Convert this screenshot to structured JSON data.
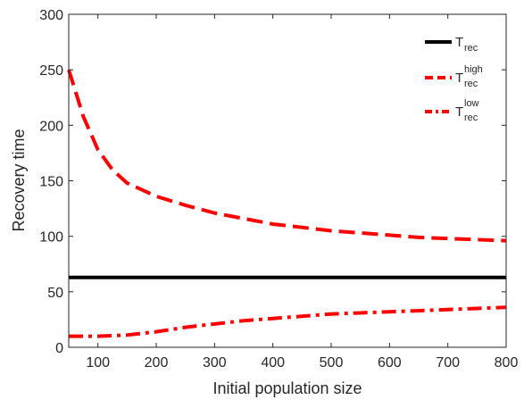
{
  "chart_data": {
    "type": "line",
    "title": "",
    "xlabel": "Initial population size",
    "ylabel": "Recovery time",
    "xlim": [
      50,
      800
    ],
    "ylim": [
      0,
      300
    ],
    "xticks": [
      100,
      200,
      300,
      400,
      500,
      600,
      700,
      800
    ],
    "yticks": [
      0,
      50,
      100,
      150,
      200,
      250,
      300
    ],
    "grid": false,
    "legend_position": "top-right",
    "series": [
      {
        "legend_base": "T",
        "legend_sub": "rec",
        "legend_sup": "",
        "color": "#000000",
        "style": "solid",
        "x": [
          50,
          800
        ],
        "y": [
          63,
          63
        ]
      },
      {
        "legend_base": "T",
        "legend_sub": "rec",
        "legend_sup": "high",
        "color": "#ff0000",
        "style": "dashed",
        "x": [
          50,
          75,
          100,
          125,
          150,
          200,
          250,
          300,
          350,
          400,
          450,
          500,
          550,
          600,
          650,
          700,
          750,
          800
        ],
        "y": [
          250,
          208,
          178,
          160,
          148,
          136,
          128,
          121,
          116,
          111,
          108,
          105,
          103,
          101,
          99,
          98,
          97,
          96
        ]
      },
      {
        "legend_base": "T",
        "legend_sub": "rec",
        "legend_sup": "low",
        "color": "#ff0000",
        "style": "dashdot",
        "x": [
          50,
          100,
          150,
          200,
          250,
          300,
          350,
          400,
          450,
          500,
          550,
          600,
          650,
          700,
          750,
          800
        ],
        "y": [
          10,
          10,
          11,
          14,
          18,
          21,
          24,
          26,
          28,
          30,
          31,
          32,
          33,
          34,
          35,
          36
        ]
      }
    ]
  }
}
